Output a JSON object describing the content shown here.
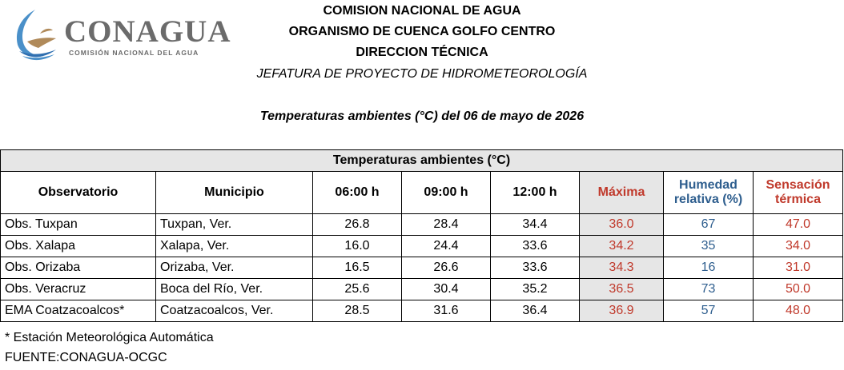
{
  "logo": {
    "name": "CONAGUA",
    "subtitle": "COMISIÓN NACIONAL DEL AGUA",
    "colors": {
      "text": "#6b6b6b",
      "wave": "#4a90c9",
      "bird": "#b08a5a"
    }
  },
  "header": {
    "line1": "COMISION NACIONAL DE AGUA",
    "line2": "ORGANISMO DE CUENCA GOLFO CENTRO",
    "line3": "DIRECCION TÉCNICA",
    "line4": "JEFATURA DE PROYECTO DE HIDROMETEOROLOGÍA",
    "report_title": "Temperaturas ambientes (°C) del 06 de mayo de 2026"
  },
  "table": {
    "band_title": "Temperaturas ambientes (°C)",
    "columns": {
      "observatorio": "Observatorio",
      "municipio": "Municipio",
      "t06": "06:00 h",
      "t09": "09:00 h",
      "t12": "12:00 h",
      "maxima": "Máxima",
      "humedad_l1": "Humedad",
      "humedad_l2": "relativa (%)",
      "sensacion_l1": "Sensación",
      "sensacion_l2": "térmica"
    },
    "rows": [
      {
        "observatorio": "Obs. Tuxpan",
        "municipio": "Tuxpan, Ver.",
        "t06": "26.8",
        "t09": "28.4",
        "t12": "34.4",
        "maxima": "36.0",
        "humedad": "67",
        "sensacion": "47.0"
      },
      {
        "observatorio": "Obs. Xalapa",
        "municipio": "Xalapa, Ver.",
        "t06": "16.0",
        "t09": "24.4",
        "t12": "33.6",
        "maxima": "34.2",
        "humedad": "35",
        "sensacion": "34.0"
      },
      {
        "observatorio": "Obs. Orizaba",
        "municipio": "Orizaba, Ver.",
        "t06": "16.5",
        "t09": "26.6",
        "t12": "33.6",
        "maxima": "34.3",
        "humedad": "16",
        "sensacion": "31.0"
      },
      {
        "observatorio": "Obs. Veracruz",
        "municipio": "Boca del Río, Ver.",
        "t06": "25.6",
        "t09": "30.4",
        "t12": "35.2",
        "maxima": "36.5",
        "humedad": "73",
        "sensacion": "50.0"
      },
      {
        "observatorio": "EMA Coatzacoalcos*",
        "municipio": "Coatzacoalcos, Ver.",
        "t06": "28.5",
        "t09": "31.6",
        "t12": "36.4",
        "maxima": "36.9",
        "humedad": "57",
        "sensacion": "48.0"
      }
    ]
  },
  "notes": {
    "footnote": "* Estación Meteorológica Automática",
    "source": "FUENTE:CONAGUA-OCGC"
  }
}
